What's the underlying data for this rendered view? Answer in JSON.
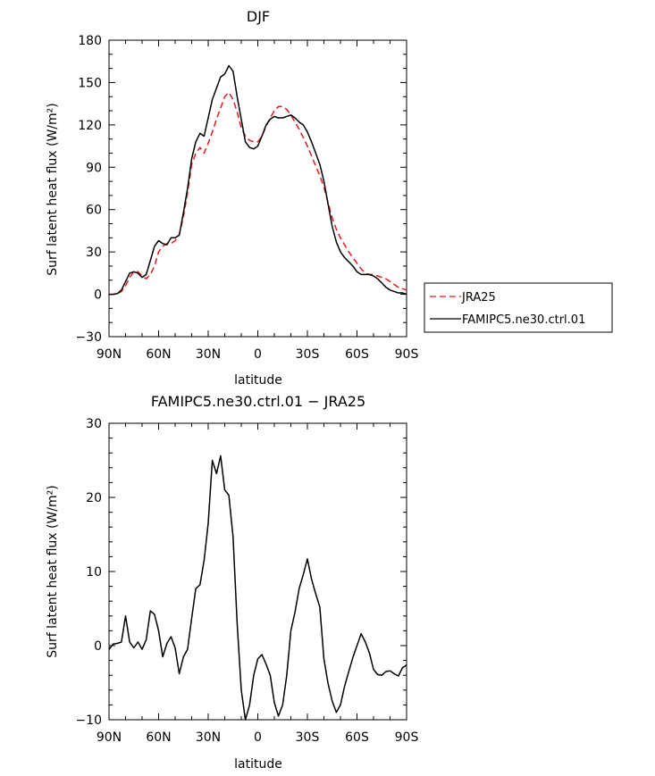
{
  "chart_data": [
    {
      "type": "line",
      "title": "DJF",
      "xlabel": "latitude",
      "ylabel": "Surf latent heat flux (W/m²)",
      "ylim": [
        -30,
        180
      ],
      "yticks": [
        -30,
        0,
        30,
        60,
        90,
        120,
        150,
        180
      ],
      "xlim": [
        90,
        -90
      ],
      "xticks": [
        90,
        60,
        30,
        0,
        -30,
        -60,
        -90
      ],
      "xtick_labels": [
        "90N",
        "60N",
        "30N",
        "0",
        "30S",
        "60S",
        "90S"
      ],
      "legend_position": "right",
      "series": [
        {
          "name": "JRA25",
          "color": "#e31a1c",
          "dash": "dashed",
          "x": [
            90,
            87.5,
            85,
            82.5,
            80,
            77.5,
            75,
            72.5,
            70,
            67.5,
            65,
            62.5,
            60,
            57.5,
            55,
            52.5,
            50,
            47.5,
            45,
            42.5,
            40,
            37.5,
            35,
            32.5,
            30,
            27.5,
            25,
            22.5,
            20,
            17.5,
            15,
            12.5,
            10,
            7.5,
            5,
            2.5,
            0,
            -2.5,
            -5,
            -7.5,
            -10,
            -12.5,
            -15,
            -17.5,
            -20,
            -22.5,
            -25,
            -27.5,
            -30,
            -32.5,
            -35,
            -37.5,
            -40,
            -42.5,
            -45,
            -47.5,
            -50,
            -52.5,
            -55,
            -57.5,
            -60,
            -62.5,
            -65,
            -67.5,
            -70,
            -72.5,
            -75,
            -77.5,
            -80,
            -82.5,
            -85,
            -87.5,
            -90
          ],
          "y": [
            0,
            0,
            0.5,
            2,
            6,
            12,
            16,
            16,
            13,
            11,
            14,
            20,
            30,
            34,
            36,
            36,
            38,
            42,
            55,
            72,
            92,
            100,
            104,
            100,
            107,
            115,
            124,
            132,
            140,
            143,
            138,
            129,
            118,
            112,
            109,
            108,
            108,
            112,
            119,
            125,
            130,
            133,
            133,
            131,
            127,
            122,
            117,
            111,
            105,
            98,
            91,
            84,
            76,
            65,
            54,
            46,
            40,
            35,
            30,
            26,
            22,
            18,
            15,
            14,
            14,
            13,
            12,
            11,
            9,
            7,
            5,
            4,
            3
          ]
        },
        {
          "name": "FAMIPC5.ne30.ctrl.01",
          "color": "#000000",
          "dash": "solid",
          "x": [
            90,
            87.5,
            85,
            82.5,
            80,
            77.5,
            75,
            72.5,
            70,
            67.5,
            65,
            62.5,
            60,
            57.5,
            55,
            52.5,
            50,
            47.5,
            45,
            42.5,
            40,
            37.5,
            35,
            32.5,
            30,
            27.5,
            25,
            22.5,
            20,
            17.5,
            15,
            12.5,
            10,
            7.5,
            5,
            2.5,
            0,
            -2.5,
            -5,
            -7.5,
            -10,
            -12.5,
            -15,
            -17.5,
            -20,
            -22.5,
            -25,
            -27.5,
            -30,
            -32.5,
            -35,
            -37.5,
            -40,
            -42.5,
            -45,
            -47.5,
            -50,
            -52.5,
            -55,
            -57.5,
            -60,
            -62.5,
            -65,
            -67.5,
            -70,
            -72.5,
            -75,
            -77.5,
            -80,
            -82.5,
            -85,
            -87.5,
            -90
          ],
          "y": [
            0,
            0,
            0.5,
            3,
            9,
            15,
            16,
            15,
            12,
            14,
            24,
            34,
            38,
            36,
            35,
            40,
            40,
            42,
            58,
            75,
            96,
            108,
            114,
            112,
            125,
            138,
            146,
            154,
            156,
            162,
            158,
            140,
            124,
            108,
            104,
            103,
            105,
            112,
            120,
            124,
            126,
            125,
            125,
            126,
            127,
            125,
            122,
            120,
            115,
            108,
            100,
            92,
            80,
            64,
            48,
            37,
            30,
            26,
            23,
            20,
            16,
            14,
            14,
            14,
            13,
            11,
            8,
            5,
            3,
            2,
            1,
            1,
            0
          ]
        }
      ]
    },
    {
      "type": "line",
      "title": "FAMIPC5.ne30.ctrl.01 − JRA25",
      "xlabel": "latitude",
      "ylabel": "Surf latent heat flux (W/m²)",
      "ylim": [
        -10,
        30
      ],
      "yticks": [
        -10,
        0,
        10,
        20,
        30
      ],
      "xlim": [
        90,
        -90
      ],
      "xticks": [
        90,
        60,
        30,
        0,
        -30,
        -60,
        -90
      ],
      "xtick_labels": [
        "90N",
        "60N",
        "30N",
        "0",
        "30S",
        "60S",
        "90S"
      ],
      "series": [
        {
          "color": "#000000",
          "dash": "solid",
          "x": [
            90,
            87.5,
            85,
            82.5,
            80,
            77.5,
            75,
            72.5,
            70,
            67.5,
            65,
            62.5,
            60,
            57.5,
            55,
            52.5,
            50,
            47.5,
            45,
            42.5,
            40,
            37.5,
            35,
            32.5,
            30,
            27.5,
            25,
            22.5,
            20,
            17.5,
            15,
            12.5,
            10,
            7.5,
            5,
            2.5,
            0,
            -2.5,
            -5,
            -7.5,
            -10,
            -12.5,
            -15,
            -17.5,
            -20,
            -22.5,
            -25,
            -27.5,
            -30,
            -32.5,
            -35,
            -37.5,
            -40,
            -42.5,
            -45,
            -47.5,
            -50,
            -52.5,
            -55,
            -57.5,
            -60,
            -62.5,
            -65,
            -67.5,
            -70,
            -72.5,
            -75,
            -77.5,
            -80,
            -82.5,
            -85,
            -87.5,
            -90
          ],
          "y": [
            -0.5,
            0.2,
            0.3,
            0.5,
            4,
            0.5,
            -0.3,
            0.5,
            -0.5,
            0.8,
            4.7,
            4.2,
            2,
            -1.5,
            0.3,
            1.2,
            -0.3,
            -3.8,
            -1.5,
            -0.5,
            3.7,
            7.7,
            8.2,
            11.5,
            16.5,
            25,
            23.2,
            25.6,
            21,
            20.3,
            14.7,
            3,
            -6,
            -10,
            -8,
            -4,
            -1.8,
            -1.2,
            -2.5,
            -4,
            -7.7,
            -9.5,
            -8,
            -4,
            2,
            4.5,
            7.7,
            9.6,
            11.7,
            9,
            7,
            5.2,
            -1.8,
            -5.1,
            -7.5,
            -9,
            -8,
            -5.5,
            -3.5,
            -1.6,
            0,
            1.6,
            0.5,
            -1,
            -3.2,
            -3.9,
            -4,
            -3.5,
            -3.4,
            -3.8,
            -4.1,
            -3,
            -2.6
          ]
        }
      ]
    }
  ]
}
